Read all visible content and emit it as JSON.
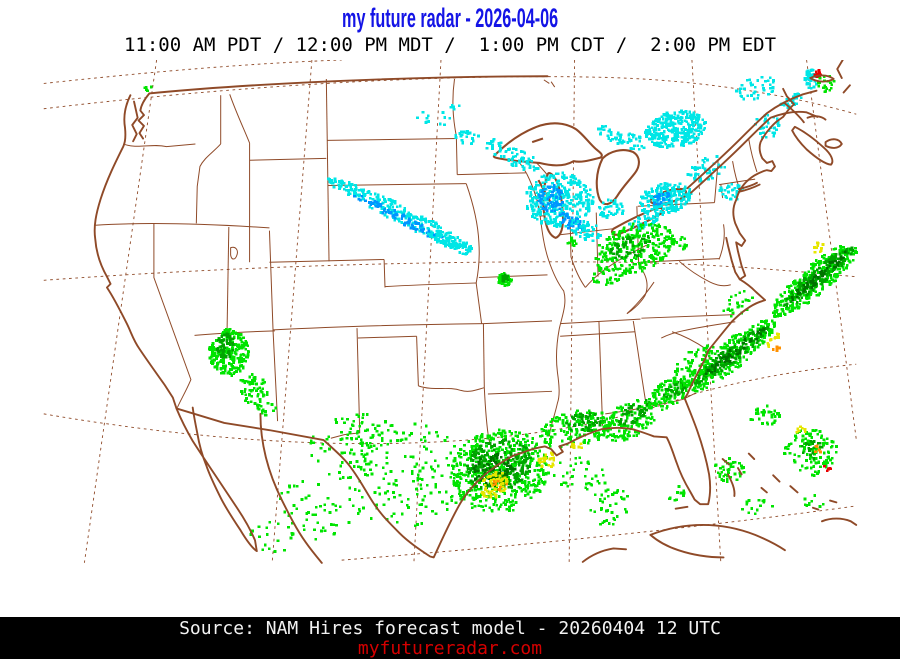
{
  "header": {
    "title": "my future radar - 2026-04-06",
    "title_color": "#1414e6",
    "times_line": "11:00 AM PDT / 12:00 PM MDT /  1:00 PM CDT /  2:00 PM EDT"
  },
  "footer": {
    "source_line": "Source: NAM Hires forecast model - 20260404 12 UTC",
    "website": "myfutureradar.com",
    "website_color": "#d40000",
    "background": "#000000"
  },
  "map": {
    "border_color": "#8f4a28",
    "background": "#ffffff",
    "grid_style": "dashed"
  },
  "precipitation": {
    "palette": {
      "green1": "#00e400",
      "green2": "#00a400",
      "green3": "#007200",
      "yellow": "#e6e600",
      "orange": "#ff9000",
      "red": "#e80000",
      "cyan": "#00e6e6",
      "blue": "#0096ff"
    },
    "areas": [
      [
        400,
        233,
        85,
        10,
        27,
        240,
        3,
        "cyan"
      ],
      [
        395,
        235,
        60,
        5,
        27,
        70,
        3,
        "blue"
      ],
      [
        452,
        263,
        30,
        7,
        25,
        60,
        3,
        "cyan"
      ],
      [
        330,
        200,
        18,
        6,
        30,
        25,
        3,
        "cyan"
      ],
      [
        468,
        146,
        14,
        8,
        0,
        22,
        3,
        "cyan"
      ],
      [
        497,
        153,
        12,
        7,
        0,
        16,
        3,
        "cyan"
      ],
      [
        524,
        169,
        28,
        10,
        22,
        55,
        3,
        "cyan"
      ],
      [
        571,
        215,
        38,
        30,
        0,
        320,
        3,
        "cyan"
      ],
      [
        562,
        214,
        14,
        16,
        0,
        60,
        3,
        "blue"
      ],
      [
        583,
        239,
        17,
        8,
        30,
        40,
        3,
        "blue"
      ],
      [
        601,
        249,
        18,
        10,
        20,
        50,
        3,
        "cyan"
      ],
      [
        628,
        225,
        16,
        12,
        0,
        40,
        3,
        "cyan"
      ],
      [
        700,
        137,
        34,
        20,
        -10,
        300,
        3,
        "cyan"
      ],
      [
        646,
        149,
        22,
        9,
        15,
        40,
        3,
        "cyan"
      ],
      [
        620,
        139,
        10,
        6,
        0,
        14,
        3,
        "cyan"
      ],
      [
        688,
        214,
        30,
        17,
        -15,
        190,
        3,
        "cyan"
      ],
      [
        684,
        214,
        12,
        7,
        -15,
        25,
        3,
        "blue"
      ],
      [
        735,
        181,
        24,
        12,
        -25,
        45,
        3,
        "cyan"
      ],
      [
        762,
        206,
        14,
        10,
        0,
        28,
        3,
        "cyan"
      ],
      [
        664,
        240,
        18,
        7,
        -20,
        35,
        3,
        "cyan"
      ],
      [
        789,
        91,
        24,
        12,
        -15,
        40,
        3,
        "cyan"
      ],
      [
        801,
        134,
        16,
        13,
        0,
        30,
        3,
        "cyan"
      ],
      [
        830,
        104,
        11,
        8,
        0,
        16,
        3,
        "cyan"
      ],
      [
        850,
        81,
        7,
        11,
        0,
        42,
        3,
        "cyan"
      ],
      [
        858,
        75,
        5,
        4,
        0,
        12,
        3,
        "red"
      ],
      [
        867,
        86,
        9,
        10,
        0,
        20,
        3,
        "green1"
      ],
      [
        824,
        108,
        8,
        5,
        0,
        9,
        3,
        "cyan"
      ],
      [
        432,
        124,
        24,
        9,
        10,
        12,
        3,
        "cyan"
      ],
      [
        453,
        111,
        8,
        4,
        0,
        5,
        3,
        "cyan"
      ],
      [
        654,
        269,
        45,
        27,
        -20,
        250,
        3,
        "green1"
      ],
      [
        650,
        267,
        24,
        12,
        -20,
        45,
        3,
        "green2"
      ],
      [
        624,
        299,
        18,
        10,
        -15,
        32,
        3,
        "green1"
      ],
      [
        699,
        264,
        14,
        10,
        0,
        26,
        3,
        "green1"
      ],
      [
        584,
        262,
        8,
        5,
        0,
        10,
        3,
        "green1"
      ],
      [
        511,
        303,
        8,
        7,
        0,
        50,
        3,
        "green1"
      ],
      [
        511,
        302,
        4,
        4,
        0,
        12,
        3,
        "green2"
      ],
      [
        205,
        384,
        22,
        26,
        0,
        220,
        3,
        "green1"
      ],
      [
        202,
        377,
        10,
        14,
        0,
        55,
        3,
        "green2"
      ],
      [
        232,
        425,
        16,
        18,
        -30,
        60,
        3,
        "green1"
      ],
      [
        247,
        446,
        10,
        8,
        0,
        16,
        3,
        "green1"
      ],
      [
        113,
        92,
        9,
        4,
        0,
        6,
        3,
        "green1"
      ],
      [
        505,
        516,
        55,
        46,
        -15,
        480,
        3,
        "green1"
      ],
      [
        504,
        509,
        38,
        28,
        -15,
        220,
        3,
        "green2"
      ],
      [
        499,
        514,
        24,
        18,
        -15,
        90,
        3,
        "green3"
      ],
      [
        500,
        531,
        18,
        13,
        -40,
        65,
        3,
        "yellow"
      ],
      [
        558,
        504,
        12,
        8,
        -30,
        26,
        3,
        "yellow"
      ],
      [
        504,
        529,
        9,
        7,
        0,
        8,
        3,
        "orange"
      ],
      [
        398,
        519,
        75,
        58,
        0,
        160,
        3,
        "green1"
      ],
      [
        338,
        494,
        45,
        38,
        0,
        60,
        3,
        "green1"
      ],
      [
        300,
        558,
        45,
        33,
        0,
        50,
        3,
        "green1"
      ],
      [
        252,
        588,
        28,
        18,
        0,
        18,
        3,
        "green1"
      ],
      [
        589,
        469,
        40,
        20,
        -12,
        150,
        3,
        "green1"
      ],
      [
        600,
        461,
        22,
        11,
        -12,
        45,
        3,
        "green2"
      ],
      [
        592,
        487,
        8,
        4,
        0,
        9,
        3,
        "yellow"
      ],
      [
        590,
        519,
        30,
        19,
        0,
        35,
        3,
        "green1"
      ],
      [
        629,
        540,
        20,
        13,
        0,
        22,
        3,
        "green1"
      ],
      [
        649,
        459,
        34,
        19,
        -30,
        130,
        3,
        "green1"
      ],
      [
        655,
        450,
        22,
        10,
        -30,
        45,
        3,
        "green2"
      ],
      [
        692,
        430,
        26,
        14,
        -35,
        95,
        3,
        "green1"
      ],
      [
        700,
        424,
        16,
        8,
        -35,
        35,
        3,
        "green2"
      ],
      [
        722,
        399,
        30,
        17,
        -36,
        70,
        3,
        "green1"
      ],
      [
        760,
        388,
        62,
        16,
        -38,
        280,
        3,
        "green1"
      ],
      [
        762,
        386,
        52,
        9,
        -38,
        130,
        3,
        "green2"
      ],
      [
        764,
        385,
        44,
        5,
        -38,
        45,
        3,
        "green3"
      ],
      [
        855,
        303,
        62,
        16,
        -40,
        280,
        3,
        "green1"
      ],
      [
        857,
        301,
        52,
        9,
        -40,
        130,
        3,
        "green2"
      ],
      [
        858,
        300,
        44,
        5,
        -40,
        50,
        3,
        "green3"
      ],
      [
        806,
        371,
        12,
        4,
        -38,
        12,
        3,
        "yellow"
      ],
      [
        858,
        268,
        10,
        5,
        -40,
        10,
        3,
        "yellow"
      ],
      [
        812,
        379,
        5,
        3,
        -38,
        5,
        3,
        "orange"
      ],
      [
        759,
        514,
        18,
        13,
        0,
        40,
        3,
        "green1"
      ],
      [
        799,
        454,
        17,
        11,
        0,
        36,
        3,
        "green1"
      ],
      [
        849,
        494,
        30,
        27,
        0,
        110,
        3,
        "green1"
      ],
      [
        852,
        492,
        14,
        10,
        0,
        20,
        3,
        "green2"
      ],
      [
        858,
        491,
        6,
        4,
        0,
        6,
        3,
        "orange"
      ],
      [
        867,
        512,
        5,
        3,
        0,
        5,
        3,
        "red"
      ],
      [
        839,
        469,
        8,
        4,
        0,
        7,
        3,
        "yellow"
      ],
      [
        624,
        564,
        25,
        11,
        0,
        20,
        3,
        "green1"
      ],
      [
        700,
        540,
        14,
        8,
        0,
        11,
        3,
        "green1"
      ],
      [
        789,
        554,
        20,
        9,
        0,
        15,
        3,
        "green1"
      ],
      [
        854,
        549,
        14,
        7,
        0,
        10,
        3,
        "green1"
      ],
      [
        360,
        468,
        30,
        17,
        0,
        30,
        3,
        "green1"
      ],
      [
        770,
        330,
        20,
        12,
        -35,
        25,
        3,
        "green1"
      ]
    ]
  }
}
